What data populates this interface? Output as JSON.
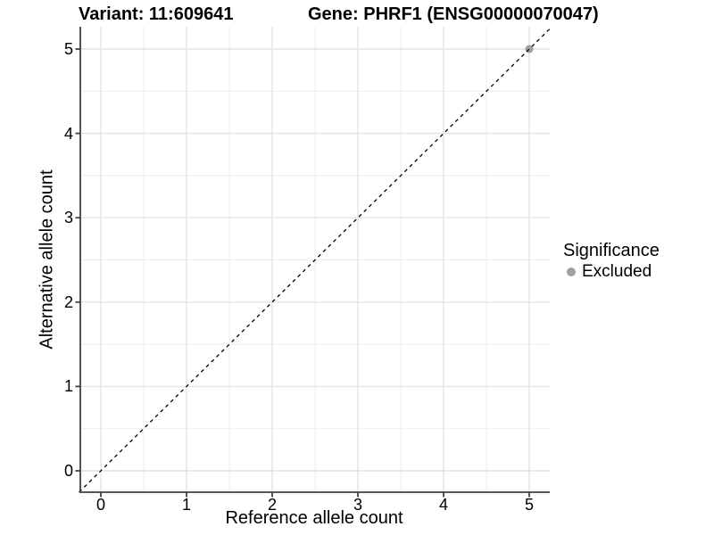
{
  "title": {
    "variant": "Variant: 11:609641",
    "gene": "Gene: PHRF1 (ENSG00000070047)"
  },
  "axes": {
    "x_label": "Reference allele count",
    "y_label": "Alternative allele count",
    "x_ticks": [
      "0",
      "1",
      "2",
      "3",
      "4",
      "5"
    ],
    "y_ticks": [
      "0",
      "1",
      "2",
      "3",
      "4",
      "5"
    ]
  },
  "legend": {
    "title": "Significance",
    "items": [
      {
        "label": "Excluded",
        "color": "#a0a0a0"
      }
    ]
  },
  "colors": {
    "axis_line": "#404040",
    "grid_major": "#e4e4e4",
    "grid_minor": "#efefef",
    "reference_line": "#000000",
    "point": "#a0a0a0",
    "background": "#ffffff"
  },
  "chart_data": {
    "type": "scatter",
    "title": "Variant: 11:609641 | Gene: PHRF1 (ENSG00000070047)",
    "xlabel": "Reference allele count",
    "ylabel": "Alternative allele count",
    "xlim": [
      -0.25,
      5.25
    ],
    "ylim": [
      -0.25,
      5.25
    ],
    "x_ticks": [
      0,
      1,
      2,
      3,
      4,
      5
    ],
    "y_ticks": [
      0,
      1,
      2,
      3,
      4,
      5
    ],
    "grid": "major+minor",
    "legend_position": "right",
    "legend_title": "Significance",
    "series": [
      {
        "name": "Excluded",
        "color": "#a0a0a0",
        "points": [
          {
            "x": 5,
            "y": 5
          }
        ]
      }
    ],
    "reference_line": {
      "type": "abline",
      "slope": 1,
      "intercept": 0,
      "style": "dashed",
      "color": "#000000"
    }
  }
}
